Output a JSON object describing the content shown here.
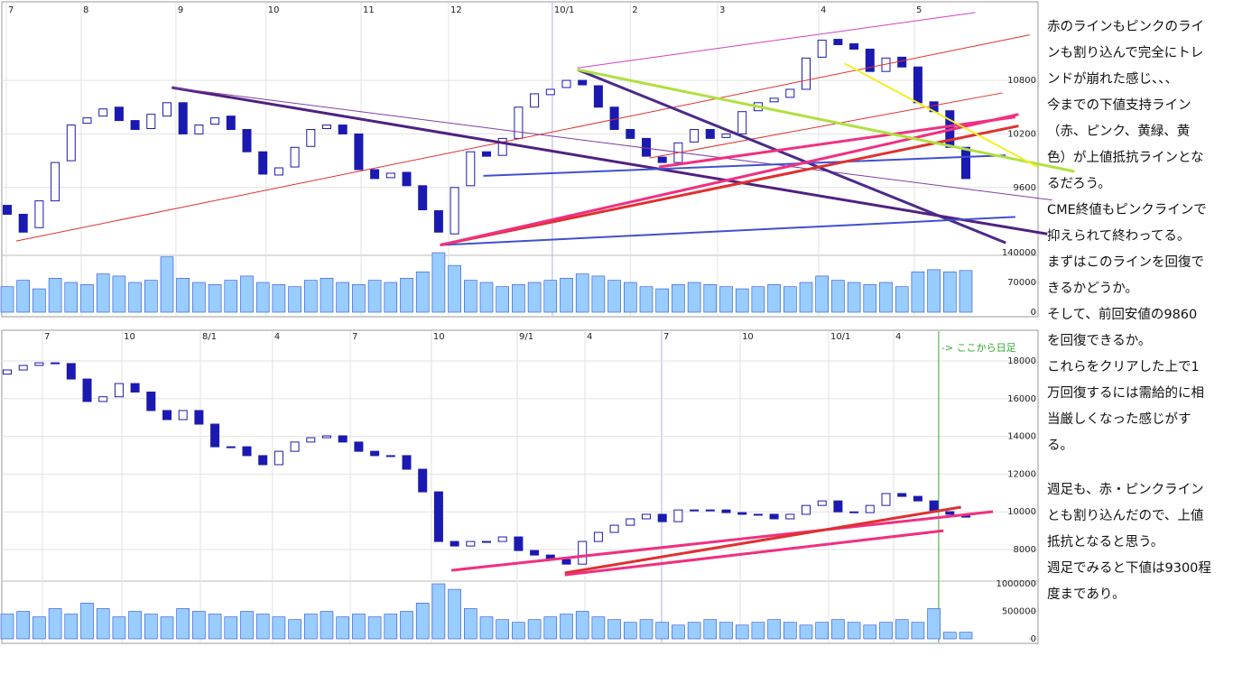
{
  "chart_data": [
    {
      "type": "candlestick",
      "xticks": [
        {
          "value": -0.06,
          "label": "7"
        },
        {
          "value": 4.63,
          "label": "8"
        },
        {
          "value": 10.56,
          "label": "9"
        },
        {
          "value": 16.2,
          "label": "10"
        },
        {
          "value": 22.15,
          "label": "11"
        },
        {
          "value": 27.63,
          "label": "12"
        },
        {
          "value": 34.12,
          "label": "10/1",
          "color": "#b0b0e8"
        },
        {
          "value": 39.0,
          "label": "2"
        },
        {
          "value": 44.46,
          "label": "3"
        },
        {
          "value": 50.79,
          "label": "4"
        },
        {
          "value": 56.78,
          "label": "5"
        }
      ],
      "ylim": [
        8870,
        11650
      ],
      "yticks": [
        9600,
        10200,
        10800
      ],
      "grid": true,
      "up_color": "#ffffff",
      "down_color": "#1a1ab0",
      "edge_color": "#1a1ab0",
      "open": [
        9400,
        9300,
        9150,
        9450,
        9900,
        10320,
        10400,
        10500,
        10350,
        10260,
        10400,
        10550,
        10200,
        10310,
        10400,
        10250,
        10000,
        9740,
        9830,
        10060,
        10260,
        10300,
        10200,
        9800,
        9710,
        9770,
        9620,
        9340,
        9080,
        9620,
        10000,
        9960,
        10150,
        10500,
        10640,
        10720,
        10800,
        10740,
        10500,
        10250,
        10150,
        9940,
        9880,
        10110,
        10250,
        10160,
        10200,
        10460,
        10560,
        10610,
        10700,
        11060,
        11260,
        11210,
        11150,
        10900,
        11060,
        10950,
        10560,
        10460,
        10050
      ],
      "close": [
        9300,
        9100,
        9450,
        9880,
        10300,
        10380,
        10480,
        10350,
        10250,
        10420,
        10550,
        10200,
        10300,
        10380,
        10250,
        10000,
        9750,
        9820,
        10050,
        10250,
        10300,
        10200,
        9800,
        9700,
        9760,
        9620,
        9350,
        9100,
        9600,
        10000,
        9950,
        10150,
        10500,
        10650,
        10700,
        10800,
        10750,
        10500,
        10250,
        10150,
        9950,
        9880,
        10100,
        10250,
        10150,
        10200,
        10450,
        10550,
        10600,
        10700,
        11050,
        11250,
        11200,
        11150,
        10900,
        11050,
        10950,
        10550,
        10450,
        10050,
        9700
      ],
      "volume": {
        "color": "#99ccff",
        "edge_color": "#3050c0",
        "ylim": [
          0,
          140000
        ],
        "yticks": [
          0,
          70000,
          140000
        ],
        "values": [
          60000,
          75000,
          55000,
          80000,
          70000,
          65000,
          90000,
          85000,
          70000,
          75000,
          130000,
          80000,
          70000,
          65000,
          75000,
          85000,
          70000,
          65000,
          60000,
          75000,
          80000,
          70000,
          65000,
          75000,
          70000,
          80000,
          95000,
          140000,
          110000,
          75000,
          70000,
          60000,
          65000,
          70000,
          75000,
          80000,
          90000,
          85000,
          75000,
          70000,
          60000,
          55000,
          65000,
          70000,
          65000,
          60000,
          55000,
          60000,
          65000,
          60000,
          70000,
          85000,
          75000,
          70000,
          65000,
          70000,
          60000,
          95000,
          100000,
          95000,
          98000
        ]
      },
      "trendlines": [
        {
          "color": "#e03030",
          "width": 1,
          "x": [
            0.56,
            64
          ],
          "y": [
            9000,
            11310
          ]
        },
        {
          "color": "#d040c0",
          "width": 1,
          "x": [
            35.7,
            60.6
          ],
          "y": [
            10940,
            11560
          ]
        },
        {
          "color": "#e03030",
          "width": 1,
          "x": [
            40.2,
            62.3
          ],
          "y": [
            9930,
            10660
          ]
        },
        {
          "color": "#502080",
          "width": 3,
          "x": [
            10.3,
            65.1
          ],
          "y": [
            10720,
            9080
          ]
        },
        {
          "color": "#8040a0",
          "width": 1,
          "x": [
            10.3,
            65.4
          ],
          "y": [
            10720,
            9460
          ]
        },
        {
          "color": "#4a2a8a",
          "width": 3,
          "x": [
            35.7,
            62.5
          ],
          "y": [
            10920,
            8980
          ]
        },
        {
          "color": "#4050d0",
          "width": 2,
          "x": [
            29.8,
            62.5
          ],
          "y": [
            9730,
            9960
          ]
        },
        {
          "color": "#4050d0",
          "width": 2,
          "x": [
            27.1,
            63.1
          ],
          "y": [
            8955,
            9270
          ]
        },
        {
          "color": "#e03030",
          "width": 3,
          "x": [
            27.1,
            63.3
          ],
          "y": [
            8955,
            10290
          ]
        },
        {
          "color": "#f03080",
          "width": 3,
          "x": [
            27.1,
            63.3
          ],
          "y": [
            8955,
            10420
          ]
        },
        {
          "color": "#f03080",
          "width": 3,
          "x": [
            40.8,
            63.1
          ],
          "y": [
            9830,
            10390
          ]
        },
        {
          "color": "#b0e040",
          "width": 3,
          "x": [
            35.7,
            66.8
          ],
          "y": [
            10920,
            9780
          ]
        },
        {
          "color": "#f0f020",
          "width": 2,
          "x": [
            52.4,
            64.5
          ],
          "y": [
            10990,
            9830
          ]
        }
      ]
    },
    {
      "type": "candlestick",
      "xticks": [
        {
          "value": 2.2,
          "label": "7"
        },
        {
          "value": 7.18,
          "label": "10"
        },
        {
          "value": 12.09,
          "label": "8/1"
        },
        {
          "value": 16.6,
          "label": "4"
        },
        {
          "value": 21.47,
          "label": "7"
        },
        {
          "value": 26.55,
          "label": "10"
        },
        {
          "value": 31.92,
          "label": "9/1"
        },
        {
          "value": 36.16,
          "label": "4"
        },
        {
          "value": 40.96,
          "label": "7",
          "color": "#b0b0e8"
        },
        {
          "value": 45.88,
          "label": "10"
        },
        {
          "value": 51.41,
          "label": "10/1"
        },
        {
          "value": 55.48,
          "label": "4"
        }
      ],
      "ylim": [
        6520,
        19530
      ],
      "yticks": [
        8000,
        10000,
        12000,
        14000,
        16000,
        18000
      ],
      "grid": true,
      "up_color": "#ffffff",
      "down_color": "#1a1ab0",
      "edge_color": "#1a1ab0",
      "open": [
        17300,
        17520,
        17760,
        17900,
        17860,
        17040,
        15850,
        16100,
        16800,
        16350,
        15370,
        14890,
        15370,
        14650,
        13450,
        13450,
        12980,
        12500,
        13210,
        13700,
        13930,
        14030,
        13700,
        13210,
        12980,
        12980,
        12260,
        11060,
        8430,
        8190,
        8430,
        8430,
        8670,
        7950,
        7710,
        7470,
        7230,
        8430,
        8910,
        9290,
        9630,
        9870,
        9480,
        10100,
        10100,
        10100,
        9960,
        9870,
        9870,
        9630,
        9870,
        10340,
        10580,
        10000,
        9960,
        10340,
        10970,
        10820,
        10580,
        10010,
        9870
      ],
      "close": [
        17520,
        17760,
        17900,
        17860,
        17040,
        15850,
        16100,
        16800,
        16350,
        15370,
        14890,
        15370,
        14650,
        13450,
        13450,
        12980,
        12500,
        13210,
        13700,
        13930,
        14030,
        13700,
        13210,
        12980,
        12980,
        12260,
        11060,
        8430,
        8190,
        8430,
        8430,
        8670,
        7950,
        7710,
        7470,
        7230,
        8430,
        8910,
        9290,
        9630,
        9870,
        9480,
        10100,
        10100,
        10100,
        9960,
        9870,
        9870,
        9630,
        9870,
        10340,
        10580,
        10000,
        9960,
        10340,
        10970,
        10820,
        10580,
        10010,
        9870,
        9720
      ],
      "volume": {
        "color": "#99ccff",
        "edge_color": "#3050c0",
        "ylim": [
          0,
          1000000
        ],
        "yticks": [
          0,
          500000,
          1000000
        ],
        "values": [
          450000,
          500000,
          400000,
          550000,
          450000,
          650000,
          550000,
          400000,
          500000,
          450000,
          400000,
          550000,
          500000,
          450000,
          400000,
          500000,
          450000,
          400000,
          350000,
          450000,
          500000,
          400000,
          450000,
          400000,
          450000,
          500000,
          650000,
          1000000,
          900000,
          550000,
          400000,
          350000,
          300000,
          350000,
          400000,
          450000,
          500000,
          400000,
          350000,
          300000,
          350000,
          300000,
          250000,
          300000,
          350000,
          300000,
          250000,
          300000,
          350000,
          300000,
          250000,
          300000,
          350000,
          300000,
          250000,
          300000,
          350000,
          300000,
          550000,
          120000,
          120000
        ]
      },
      "annotation": {
        "text": "-> ここから日足",
        "x": 58.3,
        "color": "#33aa33"
      },
      "trendlines": [
        {
          "color": "#f03080",
          "width": 3,
          "x": [
            27.8,
            61.7
          ],
          "y": [
            6900,
            10010
          ]
        },
        {
          "color": "#e03030",
          "width": 3,
          "x": [
            34.9,
            59.7
          ],
          "y": [
            6760,
            10250
          ]
        },
        {
          "color": "#f03080",
          "width": 3,
          "x": [
            34.9,
            58.6
          ],
          "y": [
            6660,
            9000
          ]
        }
      ]
    }
  ],
  "notes": [
    [
      "赤のラインもピンクのライ",
      "ンも割り込んで完全にトレ",
      "ンドが崩れた感じ、、、",
      "今までの下値支持ライン",
      "（赤、ピンク、黄緑、黄",
      "色）が上値抵抗ラインとな",
      "るだろう。",
      "CME終値もピンクラインで",
      "抑えられて終わってる。",
      "まずはこのラインを回復で",
      "きるかどうか。",
      "そして、前回安値の9860",
      "を回復できるか。",
      "これらをクリアした上で1",
      "万回復するには需給的に相",
      "当厳しくなった感じがす",
      "る。"
    ],
    [
      "週足も、赤・ピンクライン",
      "とも割り込んだので、上値",
      "抵抗となると思う。",
      "週足でみると下値は9300程",
      "度まであり。"
    ]
  ]
}
